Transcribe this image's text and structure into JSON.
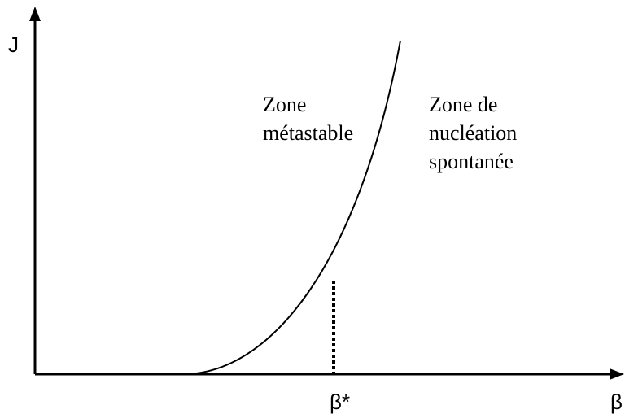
{
  "axes": {
    "y_label": "J",
    "x_label": "β"
  },
  "marker_label": "β*",
  "zones": [
    {
      "lines": [
        "Zone",
        "métastable"
      ]
    },
    {
      "lines": [
        "Zone de",
        "nucléation",
        "spontanée"
      ]
    }
  ]
}
